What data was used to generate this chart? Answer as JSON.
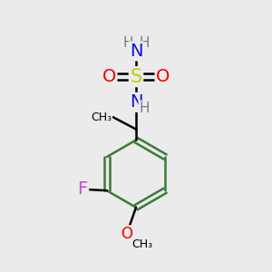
{
  "background_color": "#ebebeb",
  "atom_colors": {
    "C": "#000000",
    "H": "#708090",
    "N": "#1010dd",
    "O": "#ee0000",
    "S": "#cccc00",
    "F": "#cc44cc"
  },
  "bond_color": "#3a7a3a",
  "bond_width": 1.8,
  "font_size": 11,
  "label_font_size": 13
}
